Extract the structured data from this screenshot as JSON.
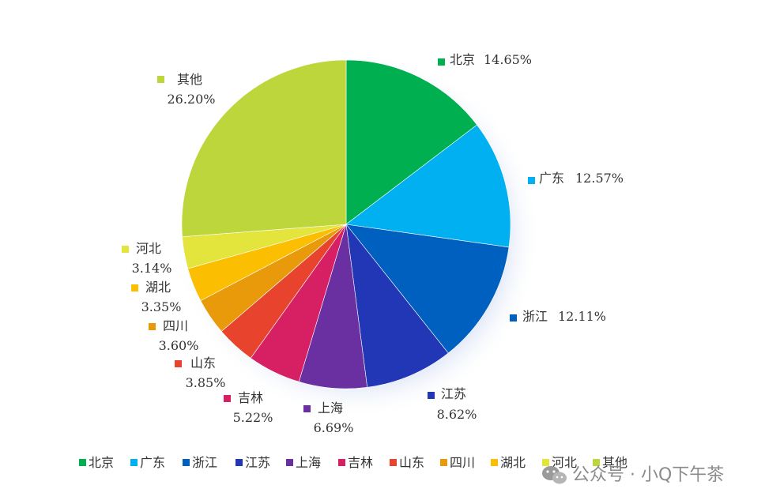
{
  "chart_data": {
    "type": "pie",
    "title": "",
    "categories": [
      "北京",
      "广东",
      "浙江",
      "江苏",
      "上海",
      "吉林",
      "山东",
      "四川",
      "湖北",
      "河北",
      "其他"
    ],
    "values": [
      14.65,
      12.57,
      12.11,
      8.62,
      6.69,
      5.22,
      3.85,
      3.6,
      3.35,
      3.14,
      26.2
    ],
    "value_labels": [
      "14.65%",
      "12.57%",
      "12.11%",
      "8.62%",
      "6.69%",
      "5.22%",
      "3.85%",
      "3.60%",
      "3.35%",
      "3.14%",
      "26.20%"
    ],
    "colors": [
      "#00b050",
      "#00b0f0",
      "#0060bf",
      "#2237b6",
      "#6a2fa0",
      "#d72063",
      "#e8432d",
      "#e89a0a",
      "#fbbe00",
      "#e3e53c",
      "#bcd63c"
    ],
    "legend_position": "bottom",
    "start_angle": "top, clockwise"
  },
  "watermark": {
    "text": "公众号 · 小Q下午茶",
    "icon": "wechat-icon"
  }
}
